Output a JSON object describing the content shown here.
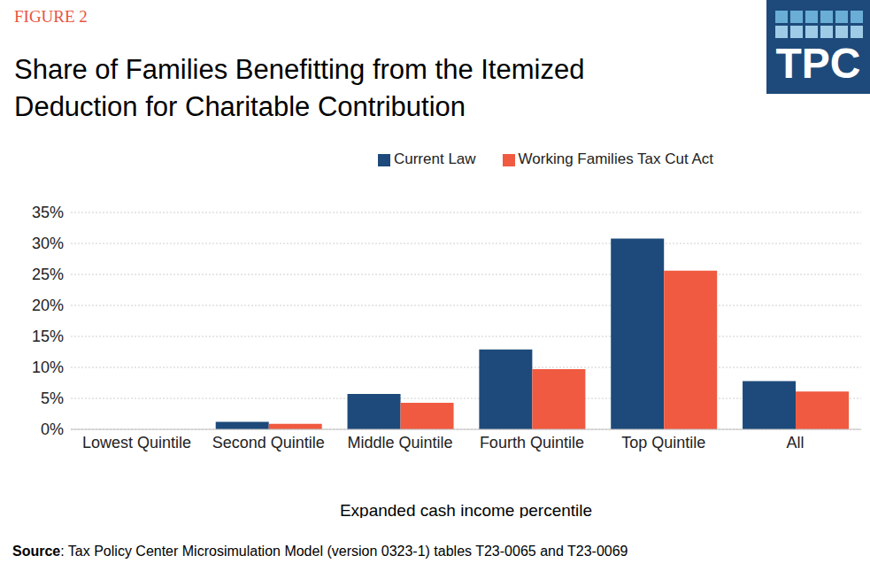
{
  "chart_data": {
    "type": "bar",
    "figure_label": "FIGURE 2",
    "logo": "TPC",
    "title": "Share of Families Benefitting from the Itemized Deduction for Charitable Contribution",
    "x_label": "Expanded cash income percentile",
    "source": "Source: Tax Policy Center Microsimulation Model (version 0323-1) tables T23-0065 and T23-0069",
    "categories": [
      "Lowest Quintile",
      "Second Quintile",
      "Middle Quintile",
      "Fourth Quintile",
      "Top Quintile",
      "All"
    ],
    "series": [
      {
        "name": "Current Law",
        "color": "#1d4a7a",
        "values": [
          0,
          1.2,
          5.7,
          12.9,
          30.8,
          7.8
        ]
      },
      {
        "name": "Working Families Tax Cut Act",
        "color": "#f05a40",
        "values": [
          0,
          0.9,
          4.3,
          9.7,
          25.6,
          6.1
        ]
      }
    ],
    "ylim": [
      0,
      35
    ],
    "yticks": [
      {
        "value": 0,
        "label": "0%"
      },
      {
        "value": 5,
        "label": "5%"
      },
      {
        "value": 10,
        "label": "10%"
      },
      {
        "value": 15,
        "label": "15%"
      },
      {
        "value": 20,
        "label": "20%"
      },
      {
        "value": 25,
        "label": "25%"
      },
      {
        "value": 30,
        "label": "30%"
      },
      {
        "value": 35,
        "label": "35%"
      }
    ],
    "grid": true,
    "legend": "top"
  }
}
